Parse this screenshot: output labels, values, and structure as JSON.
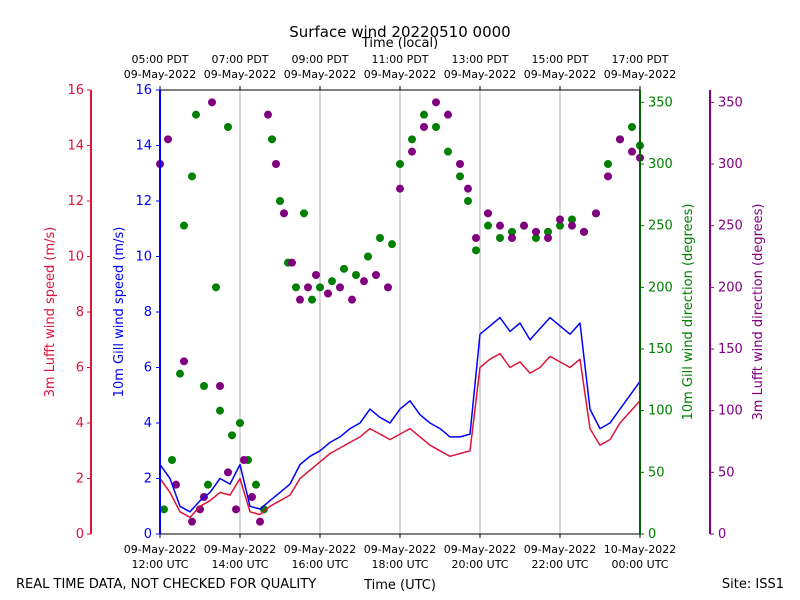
{
  "chart_data": {
    "type": "line",
    "title": "Surface wind 20220510 0000",
    "top_axis_label": "Time (local)",
    "xlabel": "Time (UTC)",
    "footer_left": "REAL TIME DATA, NOT CHECKED FOR QUALITY",
    "footer_right": "Site: ISS1",
    "x_range_utc_hours": [
      12,
      24
    ],
    "bottom_ticks": [
      {
        "hour": 12,
        "line1": "09-May-2022",
        "line2": "12:00 UTC"
      },
      {
        "hour": 14,
        "line1": "09-May-2022",
        "line2": "14:00 UTC"
      },
      {
        "hour": 16,
        "line1": "09-May-2022",
        "line2": "16:00 UTC"
      },
      {
        "hour": 18,
        "line1": "09-May-2022",
        "line2": "18:00 UTC"
      },
      {
        "hour": 20,
        "line1": "09-May-2022",
        "line2": "20:00 UTC"
      },
      {
        "hour": 22,
        "line1": "09-May-2022",
        "line2": "22:00 UTC"
      },
      {
        "hour": 24,
        "line1": "10-May-2022",
        "line2": "00:00 UTC"
      }
    ],
    "top_ticks": [
      {
        "hour": 12,
        "line1": "05:00 PDT",
        "line2": "09-May-2022"
      },
      {
        "hour": 14,
        "line1": "07:00 PDT",
        "line2": "09-May-2022"
      },
      {
        "hour": 16,
        "line1": "09:00 PDT",
        "line2": "09-May-2022"
      },
      {
        "hour": 18,
        "line1": "11:00 PDT",
        "line2": "09-May-2022"
      },
      {
        "hour": 20,
        "line1": "13:00 PDT",
        "line2": "09-May-2022"
      },
      {
        "hour": 22,
        "line1": "15:00 PDT",
        "line2": "09-May-2022"
      },
      {
        "hour": 24,
        "line1": "17:00 PDT",
        "line2": "09-May-2022"
      }
    ],
    "speed_ylim": [
      0,
      16
    ],
    "speed_ticks": [
      "0",
      "2",
      "4",
      "6",
      "8",
      "10",
      "12",
      "14",
      "16"
    ],
    "direction_ylim": [
      0,
      360
    ],
    "direction_ticks": [
      "0",
      "50",
      "100",
      "150",
      "200",
      "250",
      "300",
      "350"
    ],
    "axes": {
      "lufft_speed": {
        "label": "3m Lufft wind speed (m/s)",
        "color": "#dc143c"
      },
      "gill_speed": {
        "label": "10m Gill wind speed (m/s)",
        "color": "#0000ff"
      },
      "gill_direction": {
        "label": "10m Gill wind direction (degrees)",
        "color": "#008000"
      },
      "lufft_direction": {
        "label": "3m Lufft wind direction (degrees)",
        "color": "#800080"
      }
    },
    "series": [
      {
        "name": "10m Gill wind speed",
        "unit": "m/s",
        "color": "#0000ff",
        "style": "line",
        "x": [
          12.0,
          12.25,
          12.5,
          12.75,
          13.0,
          13.25,
          13.5,
          13.75,
          14.0,
          14.25,
          14.5,
          14.75,
          15.0,
          15.25,
          15.5,
          15.75,
          16.0,
          16.25,
          16.5,
          16.75,
          17.0,
          17.25,
          17.5,
          17.75,
          18.0,
          18.25,
          18.5,
          18.75,
          19.0,
          19.25,
          19.5,
          19.75,
          20.0,
          20.25,
          20.5,
          20.75,
          21.0,
          21.25,
          21.5,
          21.75,
          22.0,
          22.25,
          22.5,
          22.75,
          23.0,
          23.25,
          23.5,
          23.75,
          24.0
        ],
        "values": [
          2.5,
          2.0,
          1.0,
          0.8,
          1.2,
          1.5,
          2.0,
          1.8,
          2.5,
          1.0,
          0.9,
          1.2,
          1.5,
          1.8,
          2.5,
          2.8,
          3.0,
          3.3,
          3.5,
          3.8,
          4.0,
          4.5,
          4.2,
          4.0,
          4.5,
          4.8,
          4.3,
          4.0,
          3.8,
          3.5,
          3.5,
          3.6,
          7.2,
          7.5,
          7.8,
          7.3,
          7.6,
          7.0,
          7.4,
          7.8,
          7.5,
          7.2,
          7.6,
          4.5,
          3.8,
          4.0,
          4.5,
          5.0,
          5.5
        ]
      },
      {
        "name": "3m Lufft wind speed",
        "unit": "m/s",
        "color": "#dc143c",
        "style": "line",
        "x": [
          12.0,
          12.25,
          12.5,
          12.75,
          13.0,
          13.25,
          13.5,
          13.75,
          14.0,
          14.25,
          14.5,
          14.75,
          15.0,
          15.25,
          15.5,
          15.75,
          16.0,
          16.25,
          16.5,
          16.75,
          17.0,
          17.25,
          17.5,
          17.75,
          18.0,
          18.25,
          18.5,
          18.75,
          19.0,
          19.25,
          19.5,
          19.75,
          20.0,
          20.25,
          20.5,
          20.75,
          21.0,
          21.25,
          21.5,
          21.75,
          22.0,
          22.25,
          22.5,
          22.75,
          23.0,
          23.25,
          23.5,
          23.75,
          24.0
        ],
        "values": [
          2.0,
          1.5,
          0.8,
          0.6,
          1.0,
          1.2,
          1.5,
          1.4,
          2.0,
          0.8,
          0.7,
          1.0,
          1.2,
          1.4,
          2.0,
          2.3,
          2.6,
          2.9,
          3.1,
          3.3,
          3.5,
          3.8,
          3.6,
          3.4,
          3.6,
          3.8,
          3.5,
          3.2,
          3.0,
          2.8,
          2.9,
          3.0,
          6.0,
          6.3,
          6.5,
          6.0,
          6.2,
          5.8,
          6.0,
          6.4,
          6.2,
          6.0,
          6.3,
          3.8,
          3.2,
          3.4,
          4.0,
          4.4,
          4.8
        ]
      },
      {
        "name": "10m Gill wind direction",
        "unit": "degrees",
        "color": "#008000",
        "style": "dots",
        "x": [
          12.1,
          12.3,
          12.5,
          12.6,
          12.8,
          12.9,
          13.1,
          13.2,
          13.4,
          13.5,
          13.7,
          13.8,
          14.0,
          14.2,
          14.4,
          14.6,
          14.8,
          15.0,
          15.2,
          15.4,
          15.6,
          15.8,
          16.0,
          16.3,
          16.6,
          16.9,
          17.2,
          17.5,
          17.8,
          18.0,
          18.3,
          18.6,
          18.9,
          19.2,
          19.5,
          19.7,
          19.9,
          20.2,
          20.5,
          20.8,
          21.1,
          21.4,
          21.7,
          22.0,
          22.3,
          22.6,
          22.9,
          23.2,
          23.5,
          23.8,
          24.0
        ],
        "values": [
          20,
          60,
          130,
          250,
          290,
          340,
          120,
          40,
          200,
          100,
          330,
          80,
          90,
          60,
          40,
          20,
          320,
          270,
          220,
          200,
          260,
          190,
          200,
          205,
          215,
          210,
          225,
          240,
          235,
          300,
          320,
          340,
          330,
          310,
          290,
          270,
          230,
          250,
          240,
          245,
          250,
          240,
          245,
          250,
          255,
          245,
          260,
          300,
          320,
          330,
          315
        ]
      },
      {
        "name": "3m Lufft wind direction",
        "unit": "degrees",
        "color": "#800080",
        "style": "dots",
        "x": [
          12.0,
          12.2,
          12.4,
          12.6,
          12.8,
          13.0,
          13.1,
          13.3,
          13.5,
          13.7,
          13.9,
          14.1,
          14.3,
          14.5,
          14.7,
          14.9,
          15.1,
          15.3,
          15.5,
          15.7,
          15.9,
          16.2,
          16.5,
          16.8,
          17.1,
          17.4,
          17.7,
          18.0,
          18.3,
          18.6,
          18.9,
          19.2,
          19.5,
          19.7,
          19.9,
          20.2,
          20.5,
          20.8,
          21.1,
          21.4,
          21.7,
          22.0,
          22.3,
          22.6,
          22.9,
          23.2,
          23.5,
          23.8,
          24.0
        ],
        "values": [
          300,
          320,
          40,
          140,
          10,
          20,
          30,
          350,
          120,
          50,
          20,
          60,
          30,
          10,
          340,
          300,
          260,
          220,
          190,
          200,
          210,
          195,
          200,
          190,
          205,
          210,
          200,
          280,
          310,
          330,
          350,
          340,
          300,
          280,
          240,
          260,
          250,
          240,
          250,
          245,
          240,
          255,
          250,
          245,
          260,
          290,
          320,
          310,
          305
        ]
      }
    ]
  }
}
